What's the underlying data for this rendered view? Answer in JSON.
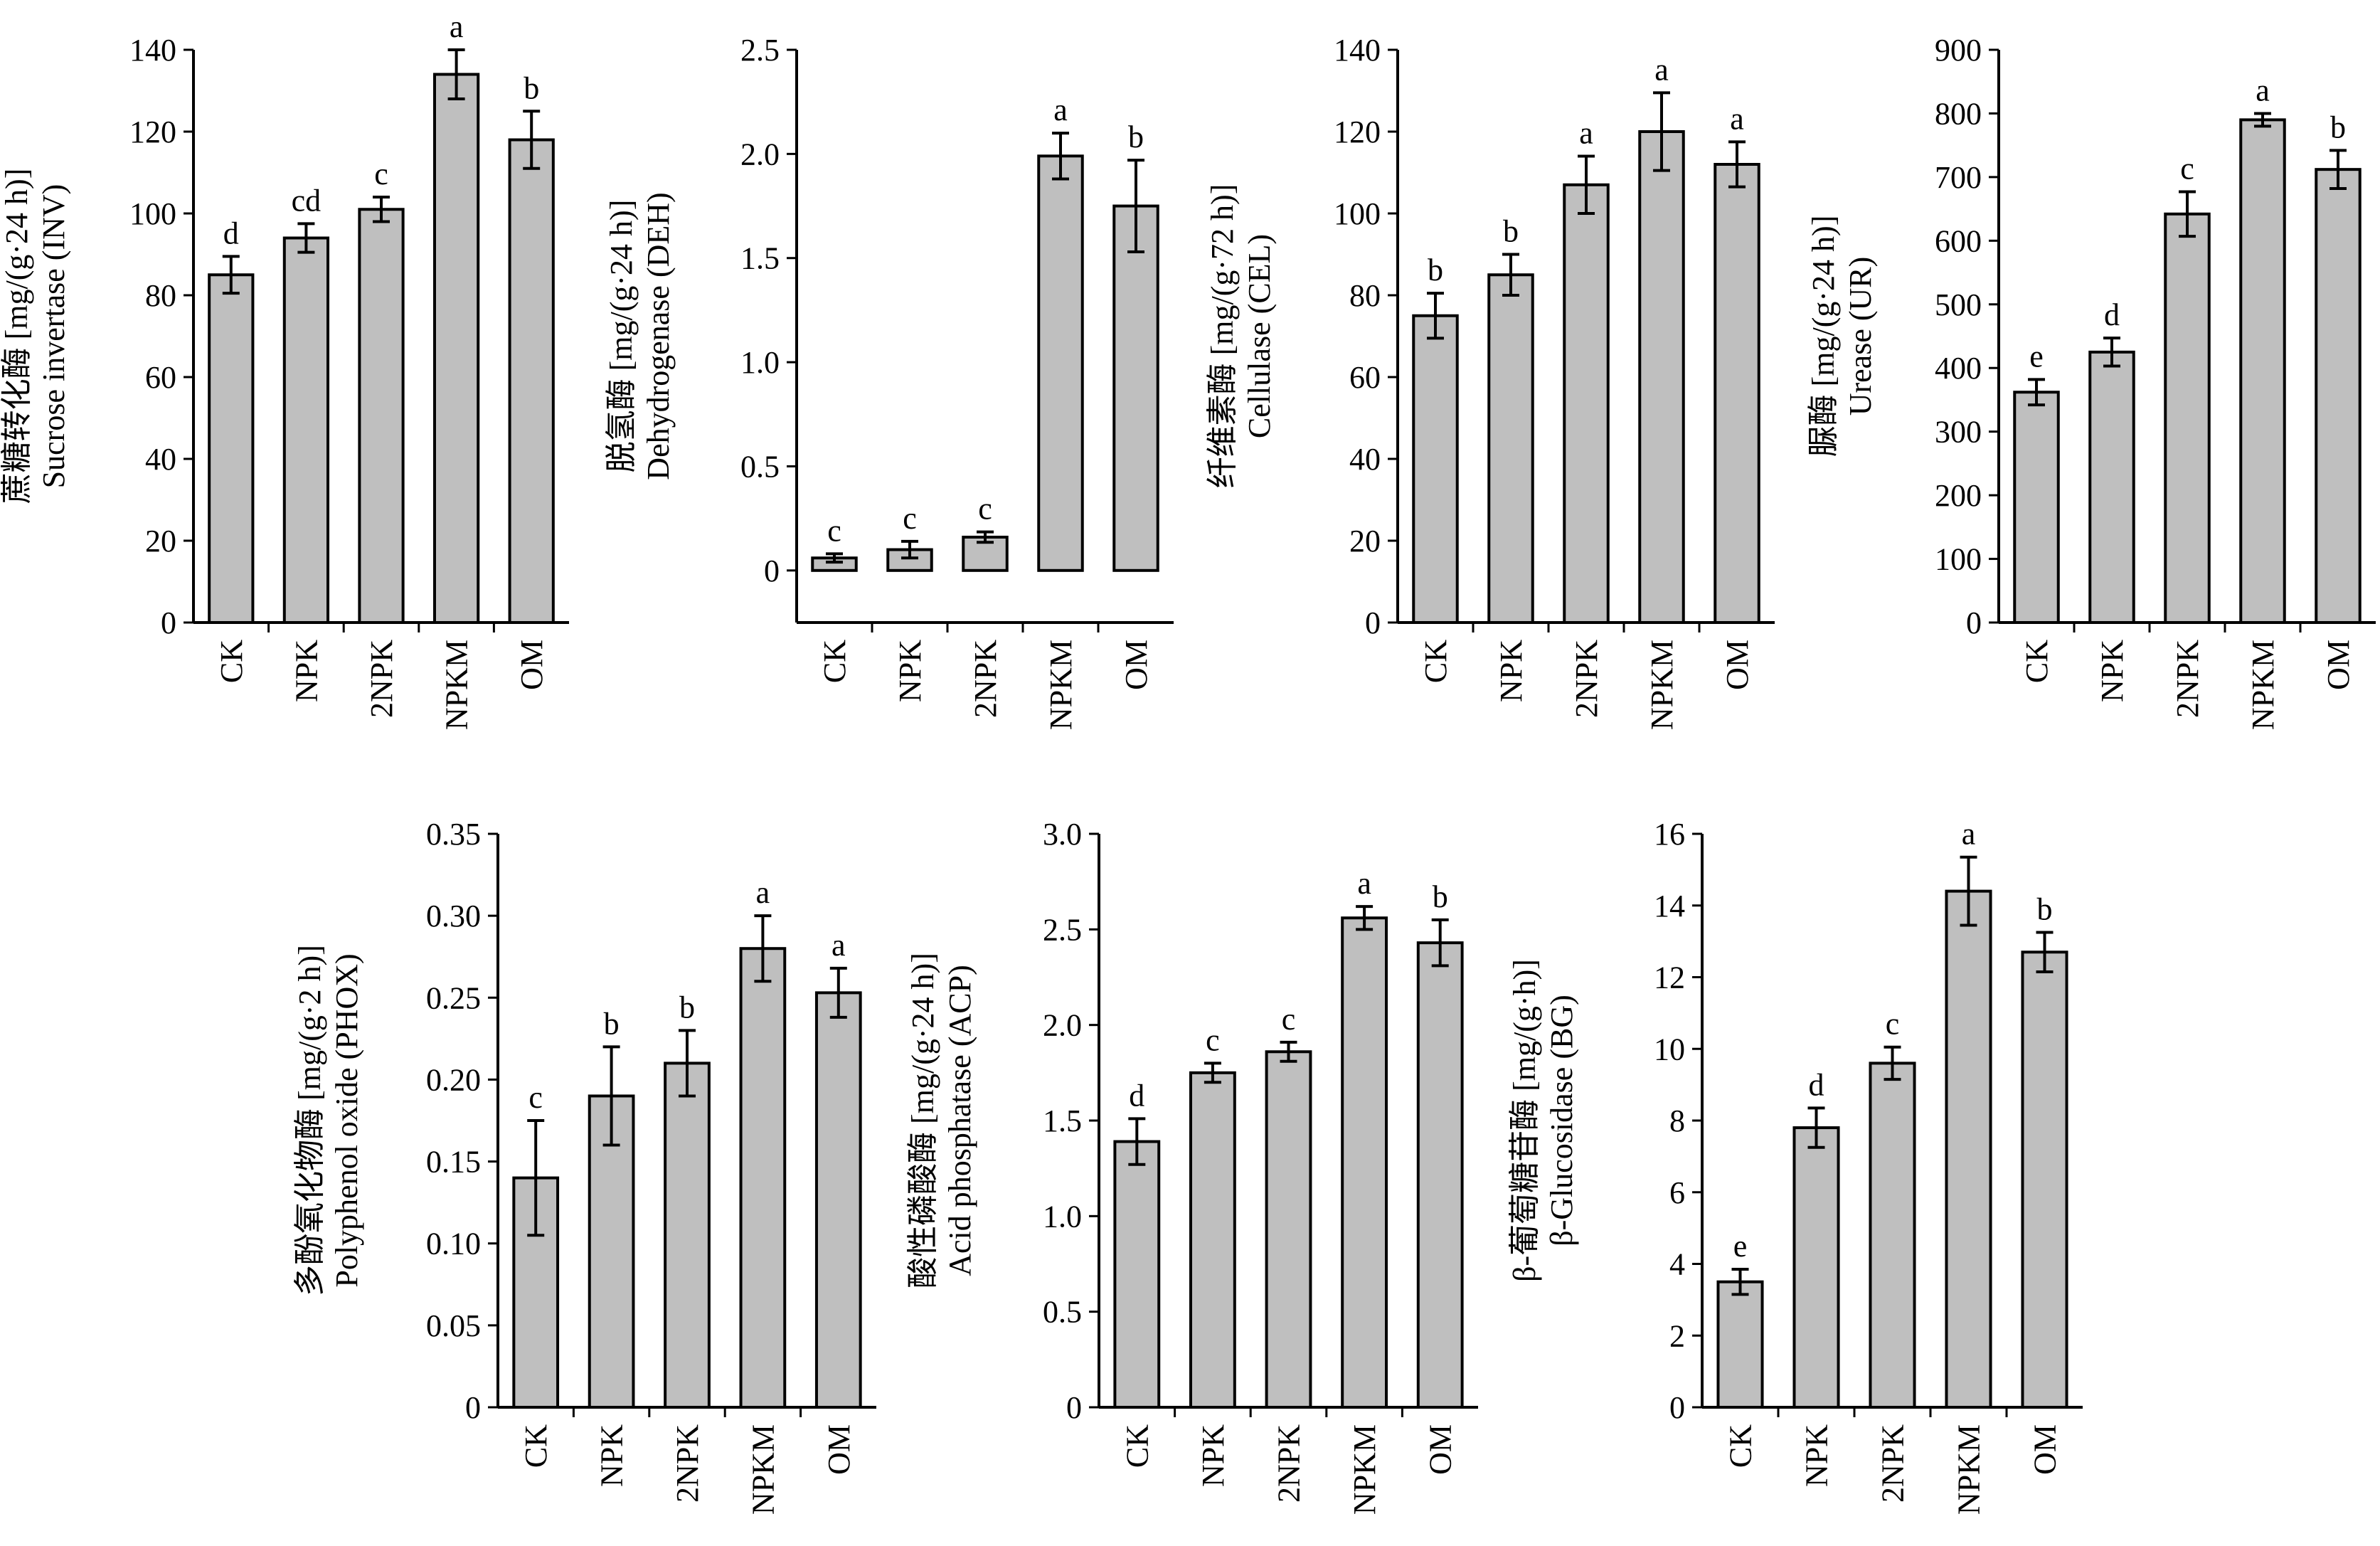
{
  "chart_data": [
    {
      "type": "bar",
      "categories": [
        "CK",
        "NPK",
        "2NPK",
        "NPKM",
        "OM"
      ],
      "values": [
        85,
        94,
        101,
        134,
        118
      ],
      "errors": [
        4.5,
        3.5,
        3.0,
        6.0,
        7.0
      ],
      "significance": [
        "d",
        "cd",
        "c",
        "a",
        "b"
      ],
      "ylabel_lines": [
        "蔗糖转化酶 [mg/(g·24 h)]",
        "Sucrose invertase (INV)"
      ],
      "ylim": [
        0,
        140
      ],
      "yticks": [
        0,
        20,
        40,
        60,
        80,
        100,
        120,
        140
      ],
      "ytick_labels": [
        "0",
        "20",
        "40",
        "60",
        "80",
        "100",
        "120",
        "140"
      ]
    },
    {
      "type": "bar",
      "categories": [
        "CK",
        "NPK",
        "2NPK",
        "NPKM",
        "OM"
      ],
      "values": [
        0.06,
        0.1,
        0.16,
        1.99,
        1.75
      ],
      "errors": [
        0.02,
        0.04,
        0.025,
        0.11,
        0.22
      ],
      "significance": [
        "c",
        "c",
        "c",
        "a",
        "b"
      ],
      "ylabel_lines": [
        "脱氢酶 [mg/(g·24 h)]",
        "Dehydrogenase (DEH)"
      ],
      "ylim": [
        -0.25,
        2.5
      ],
      "yticks": [
        0,
        0.5,
        1.0,
        1.5,
        2.0,
        2.5
      ],
      "ytick_labels": [
        "0",
        "0.5",
        "1.0",
        "1.5",
        "2.0",
        "2.5"
      ]
    },
    {
      "type": "bar",
      "categories": [
        "CK",
        "NPK",
        "2NPK",
        "NPKM",
        "OM"
      ],
      "values": [
        75,
        85,
        107,
        120,
        112
      ],
      "errors": [
        5.5,
        5.0,
        7.0,
        9.5,
        5.5
      ],
      "significance": [
        "b",
        "b",
        "a",
        "a",
        "a"
      ],
      "ylabel_lines": [
        "纤维素酶 [mg/(g·72 h)]",
        "Cellulase (CEL)"
      ],
      "ylim": [
        0,
        140
      ],
      "yticks": [
        0,
        20,
        40,
        60,
        80,
        100,
        120,
        140
      ],
      "ytick_labels": [
        "0",
        "20",
        "40",
        "60",
        "80",
        "100",
        "120",
        "140"
      ]
    },
    {
      "type": "bar",
      "categories": [
        "CK",
        "NPK",
        "2NPK",
        "NPKM",
        "OM"
      ],
      "values": [
        362,
        425,
        642,
        790,
        712
      ],
      "errors": [
        20,
        22,
        35,
        10,
        30
      ],
      "significance": [
        "e",
        "d",
        "c",
        "a",
        "b"
      ],
      "ylabel_lines": [
        "脲酶 [mg/(g·24 h)]",
        "Urease (UR)"
      ],
      "ylim": [
        0,
        900
      ],
      "yticks": [
        0,
        100,
        200,
        300,
        400,
        500,
        600,
        700,
        800,
        900
      ],
      "ytick_labels": [
        "0",
        "100",
        "200",
        "300",
        "400",
        "500",
        "600",
        "700",
        "800",
        "900"
      ]
    },
    {
      "type": "bar",
      "categories": [
        "CK",
        "NPK",
        "2NPK",
        "NPKM",
        "OM"
      ],
      "values": [
        0.14,
        0.19,
        0.21,
        0.28,
        0.253
      ],
      "errors": [
        0.035,
        0.03,
        0.02,
        0.02,
        0.015
      ],
      "significance": [
        "c",
        "b",
        "b",
        "a",
        "a"
      ],
      "ylabel_lines": [
        "多酚氧化物酶 [mg/(g·2 h)]",
        "Polyphenol oxide (PHOX)"
      ],
      "ylim": [
        0,
        0.35
      ],
      "yticks": [
        0,
        0.05,
        0.1,
        0.15,
        0.2,
        0.25,
        0.3,
        0.35
      ],
      "ytick_labels": [
        "0",
        "0.05",
        "0.10",
        "0.15",
        "0.20",
        "0.25",
        "0.30",
        "0.35"
      ]
    },
    {
      "type": "bar",
      "categories": [
        "CK",
        "NPK",
        "2NPK",
        "NPKM",
        "OM"
      ],
      "values": [
        1.39,
        1.75,
        1.86,
        2.56,
        2.43
      ],
      "errors": [
        0.12,
        0.05,
        0.05,
        0.06,
        0.12
      ],
      "significance": [
        "d",
        "c",
        "c",
        "a",
        "b"
      ],
      "ylabel_lines": [
        "酸性磷酸酶 [mg/(g·24 h)]",
        "Acid phosphatase (ACP)"
      ],
      "ylim": [
        0,
        3.0
      ],
      "yticks": [
        0,
        0.5,
        1.0,
        1.5,
        2.0,
        2.5,
        3.0
      ],
      "ytick_labels": [
        "0",
        "0.5",
        "1.0",
        "1.5",
        "2.0",
        "2.5",
        "3.0"
      ]
    },
    {
      "type": "bar",
      "categories": [
        "CK",
        "NPK",
        "2NPK",
        "NPKM",
        "OM"
      ],
      "values": [
        3.5,
        7.8,
        9.6,
        14.4,
        12.7
      ],
      "errors": [
        0.35,
        0.55,
        0.45,
        0.95,
        0.55
      ],
      "significance": [
        "e",
        "d",
        "c",
        "a",
        "b"
      ],
      "ylabel_lines": [
        "β-葡萄糖苷酶 [mg/(g·h)]",
        "β-Glucosidase (BG)"
      ],
      "ylim": [
        0,
        16
      ],
      "yticks": [
        0,
        2,
        4,
        6,
        8,
        10,
        12,
        14,
        16
      ],
      "ytick_labels": [
        "0",
        "2",
        "4",
        "6",
        "8",
        "10",
        "12",
        "14",
        "16"
      ]
    }
  ]
}
